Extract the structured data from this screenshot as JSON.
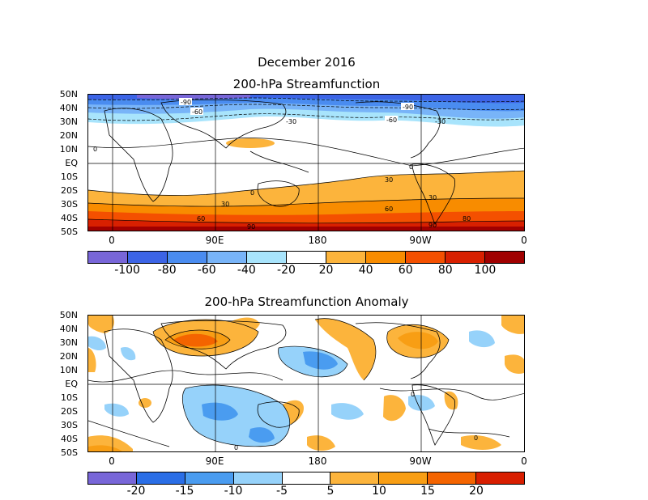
{
  "figure": {
    "title": "December 2016",
    "panel1_title": "200-hPa Streamfunction",
    "panel2_title": "200-hPa Streamfunction Anomaly"
  },
  "lat_labels": [
    "50N",
    "40N",
    "30N",
    "20N",
    "10N",
    "EQ",
    "10S",
    "20S",
    "30S",
    "40S",
    "50S"
  ],
  "lon_labels": [
    "0",
    "90E",
    "180",
    "90W",
    "0"
  ],
  "panel1": {
    "contour_labels": [
      "-90",
      "-60",
      "-30",
      "0",
      "-90",
      "-60",
      "-30",
      "0",
      "30",
      "60",
      "90",
      "30",
      "0",
      "30",
      "60",
      "80",
      "90"
    ],
    "colorbar": {
      "colors": [
        "#7866d8",
        "#3c64e6",
        "#4a8cf0",
        "#78b4f8",
        "#a8e4fc",
        "#ffffff",
        "#fcb43c",
        "#f88c00",
        "#f45000",
        "#d82000",
        "#a00000"
      ],
      "labels": [
        "-100",
        "-80",
        "-60",
        "-40",
        "-20",
        "20",
        "40",
        "60",
        "80",
        "100"
      ]
    }
  },
  "panel2": {
    "contour_labels": [
      "0",
      "0",
      "0"
    ],
    "colorbar": {
      "colors": [
        "#7866d8",
        "#2a6ee6",
        "#4a9cf0",
        "#96d2fa",
        "#ffffff",
        "#fcb43c",
        "#f89e14",
        "#f46400",
        "#d81e00"
      ],
      "labels": [
        "-20",
        "-15",
        "-10",
        "-5",
        "5",
        "10",
        "15",
        "20"
      ]
    }
  }
}
